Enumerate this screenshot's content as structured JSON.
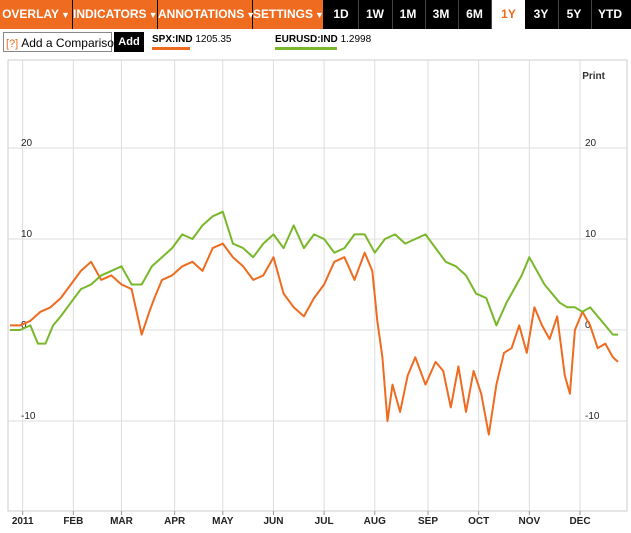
{
  "toolbar": {
    "menus": [
      {
        "label": "OVERLAY"
      },
      {
        "label": "INDICATORS"
      },
      {
        "label": "ANNOTATIONS"
      },
      {
        "label": "SETTINGS"
      }
    ],
    "ranges": [
      "1D",
      "1W",
      "1M",
      "3M",
      "6M",
      "1Y",
      "3Y",
      "5Y",
      "YTD"
    ],
    "active_range": "1Y",
    "dropdown_glyph": "▼"
  },
  "compare": {
    "help_label": "[?]",
    "placeholder": "Add a Comparison",
    "add_label": "Add"
  },
  "legend": [
    {
      "symbol": "SPX:IND",
      "value": "1205.35",
      "color": "#ee6b1f"
    },
    {
      "symbol": "EURUSD:IND",
      "value": "1.2998",
      "color": "#78b82a"
    }
  ],
  "print_label": "Print",
  "colors": {
    "accent": "#ee6b1f",
    "grid": "#dddddd",
    "spx": "#ee6b1f",
    "eurusd": "#78b82a"
  },
  "chart_data": {
    "type": "line",
    "ylim": [
      -13,
      25
    ],
    "yticks": [
      20,
      10,
      0,
      -10
    ],
    "grid": true,
    "x_labels": [
      "2011",
      "FEB",
      "MAR",
      "APR",
      "MAY",
      "JUN",
      "JUL",
      "AUG",
      "SEP",
      "OCT",
      "NOV",
      "DEC"
    ],
    "x_label_pos": [
      0.5,
      2.5,
      4.4,
      6.5,
      8.4,
      10.4,
      12.4,
      14.4,
      16.5,
      18.5,
      20.5,
      22.5
    ],
    "x_range": [
      0,
      24
    ],
    "series": [
      {
        "name": "SPX:IND",
        "color": "#ee6b1f",
        "x": [
          0,
          0.4,
          0.8,
          1.2,
          1.6,
          2.0,
          2.4,
          2.8,
          3.2,
          3.6,
          4.0,
          4.4,
          4.8,
          5.2,
          5.5,
          5.7,
          6.0,
          6.4,
          6.8,
          7.2,
          7.6,
          8.0,
          8.4,
          8.8,
          9.2,
          9.6,
          10.0,
          10.4,
          10.8,
          11.2,
          11.6,
          12.0,
          12.4,
          12.8,
          13.2,
          13.6,
          14.0,
          14.3,
          14.5,
          14.7,
          14.9,
          15.1,
          15.4,
          15.7,
          16.0,
          16.4,
          16.8,
          17.1,
          17.4,
          17.7,
          18.0,
          18.3,
          18.6,
          18.9,
          19.2,
          19.5,
          19.8,
          20.1,
          20.4,
          20.7,
          21.0,
          21.3,
          21.6,
          21.9,
          22.1,
          22.3,
          22.6,
          22.9,
          23.2,
          23.5,
          23.8,
          24.0
        ],
        "values": [
          0.5,
          0.5,
          1.0,
          2.0,
          2.5,
          3.5,
          5.0,
          6.5,
          7.5,
          5.5,
          6.0,
          5.0,
          4.5,
          -0.5,
          2.0,
          3.5,
          5.5,
          6.0,
          7.0,
          7.5,
          6.5,
          9.0,
          9.5,
          8.0,
          7.0,
          5.5,
          6.0,
          8.0,
          4.0,
          2.5,
          1.5,
          3.5,
          5.0,
          7.5,
          8.0,
          5.5,
          8.5,
          6.5,
          1.0,
          -3.0,
          -10.0,
          -6.0,
          -9.0,
          -5.0,
          -3.0,
          -6.0,
          -3.5,
          -4.5,
          -8.5,
          -4.0,
          -9.0,
          -4.5,
          -7.0,
          -11.5,
          -6.0,
          -2.5,
          -2.0,
          0.5,
          -2.5,
          2.5,
          0.5,
          -1.0,
          1.5,
          -5.0,
          -7.0,
          0.0,
          2.0,
          0.5,
          -2.0,
          -1.5,
          -3.0,
          -3.5
        ]
      },
      {
        "name": "EURUSD:IND",
        "color": "#78b82a",
        "x": [
          0,
          0.4,
          0.8,
          1.1,
          1.4,
          1.7,
          2.0,
          2.4,
          2.8,
          3.2,
          3.6,
          4.0,
          4.4,
          4.8,
          5.2,
          5.6,
          6.0,
          6.4,
          6.8,
          7.2,
          7.6,
          8.0,
          8.4,
          8.8,
          9.2,
          9.6,
          10.0,
          10.4,
          10.8,
          11.2,
          11.6,
          12.0,
          12.4,
          12.8,
          13.2,
          13.6,
          14.0,
          14.4,
          14.8,
          15.2,
          15.6,
          16.0,
          16.4,
          16.8,
          17.2,
          17.6,
          18.0,
          18.4,
          18.8,
          19.2,
          19.6,
          19.9,
          20.2,
          20.5,
          20.8,
          21.1,
          21.4,
          21.7,
          22.0,
          22.3,
          22.6,
          22.9,
          23.2,
          23.5,
          23.8,
          24.0
        ],
        "values": [
          0.0,
          0.0,
          0.5,
          -1.5,
          -1.5,
          0.5,
          1.5,
          3.0,
          4.5,
          5.0,
          6.0,
          6.5,
          7.0,
          5.0,
          5.0,
          7.0,
          8.0,
          9.0,
          10.5,
          10.0,
          11.5,
          12.5,
          13.0,
          9.5,
          9.0,
          8.0,
          9.5,
          10.5,
          9.0,
          11.5,
          9.0,
          10.5,
          10.0,
          8.5,
          9.0,
          10.5,
          10.5,
          8.5,
          10.0,
          10.5,
          9.5,
          10.0,
          10.5,
          9.0,
          7.5,
          7.0,
          6.0,
          4.0,
          3.5,
          0.5,
          3.0,
          4.5,
          6.0,
          8.0,
          6.5,
          5.0,
          4.0,
          3.0,
          2.5,
          2.5,
          2.0,
          2.5,
          1.5,
          0.5,
          -0.5,
          -0.5
        ]
      }
    ]
  }
}
